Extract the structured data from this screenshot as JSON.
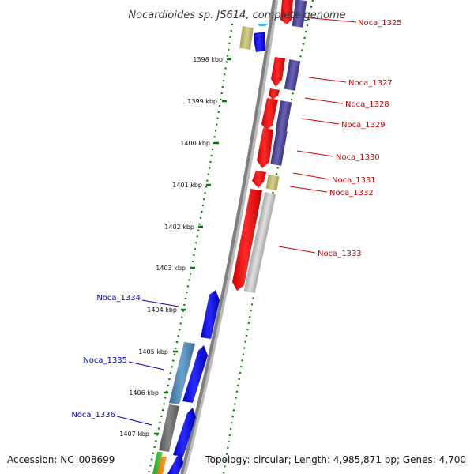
{
  "title": "Nocardioides sp. JS614, complete genome",
  "accession": "Accession: NC_008699",
  "topology": "Topology: circular; Length: 4,985,871 bp; Genes: 4,700",
  "kbp_labels": [
    "1398 kbp",
    "1399 kbp",
    "1400 kbp",
    "1401 kbp",
    "1402 kbp",
    "1403 kbp",
    "1404 kbp",
    "1405 kbp",
    "1406 kbp",
    "1407 kbp"
  ],
  "forward_genes": [
    "Noca_1325",
    "Noca_1327",
    "Noca_1328",
    "Noca_1329",
    "Noca_1330",
    "Noca_1331",
    "Noca_1332",
    "Noca_1333"
  ],
  "reverse_genes": [
    "Noca_1334",
    "Noca_1335",
    "Noca_1336"
  ],
  "colors": {
    "forward_cds": "#ff0000",
    "reverse_cds": "#0000ff",
    "forward_label": "#cc0000",
    "reverse_label": "#0000cc",
    "backbone": "#808080",
    "tick": "#008000",
    "slate": "#4b4593",
    "khaki": "#bdb76b",
    "silver": "#c0c0c0",
    "steel": "#4682b4",
    "dimgray": "#696969"
  }
}
